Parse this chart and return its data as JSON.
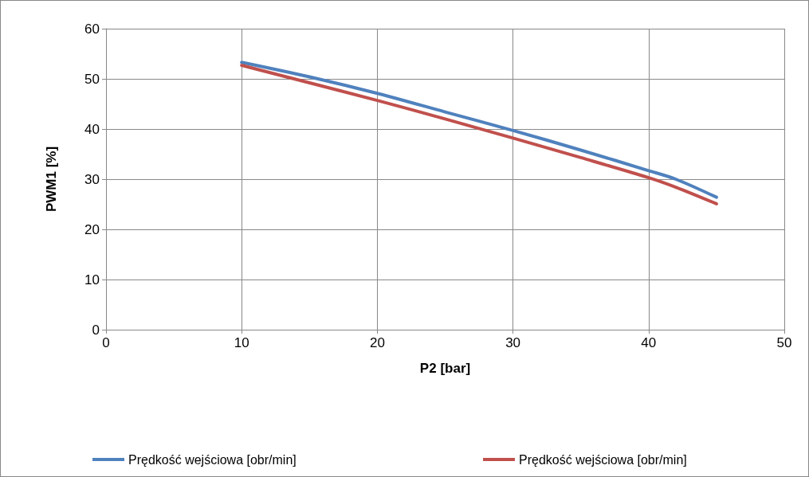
{
  "chart_data": {
    "type": "line",
    "xlabel": "P2 [bar]",
    "ylabel": "PWM1 [%]",
    "xlim": [
      0,
      50
    ],
    "xticks": [
      0,
      10,
      20,
      30,
      40,
      50
    ],
    "ylim": [
      0,
      60
    ],
    "yticks": [
      0,
      10,
      20,
      30,
      40,
      50,
      60
    ],
    "grid": true,
    "legend": "bottom",
    "marker": "none",
    "line_style": "solid",
    "series": [
      {
        "name": "Prędkość wejściowa [obr/min]",
        "color": "#4f81bd",
        "x": [
          10,
          15,
          20,
          25,
          30,
          35,
          40,
          42,
          45
        ],
        "values": [
          53.3,
          50.4,
          47.1,
          43.4,
          39.7,
          35.8,
          31.7,
          30,
          26.4
        ]
      },
      {
        "name": "Prędkość wejściowa [obr/min]",
        "color": "#c0504d",
        "x": [
          10,
          15,
          20,
          25,
          30,
          35,
          40,
          42,
          45
        ],
        "values": [
          52.7,
          49.2,
          45.7,
          42,
          38.2,
          34.3,
          30.3,
          28.4,
          25.1
        ]
      }
    ]
  }
}
